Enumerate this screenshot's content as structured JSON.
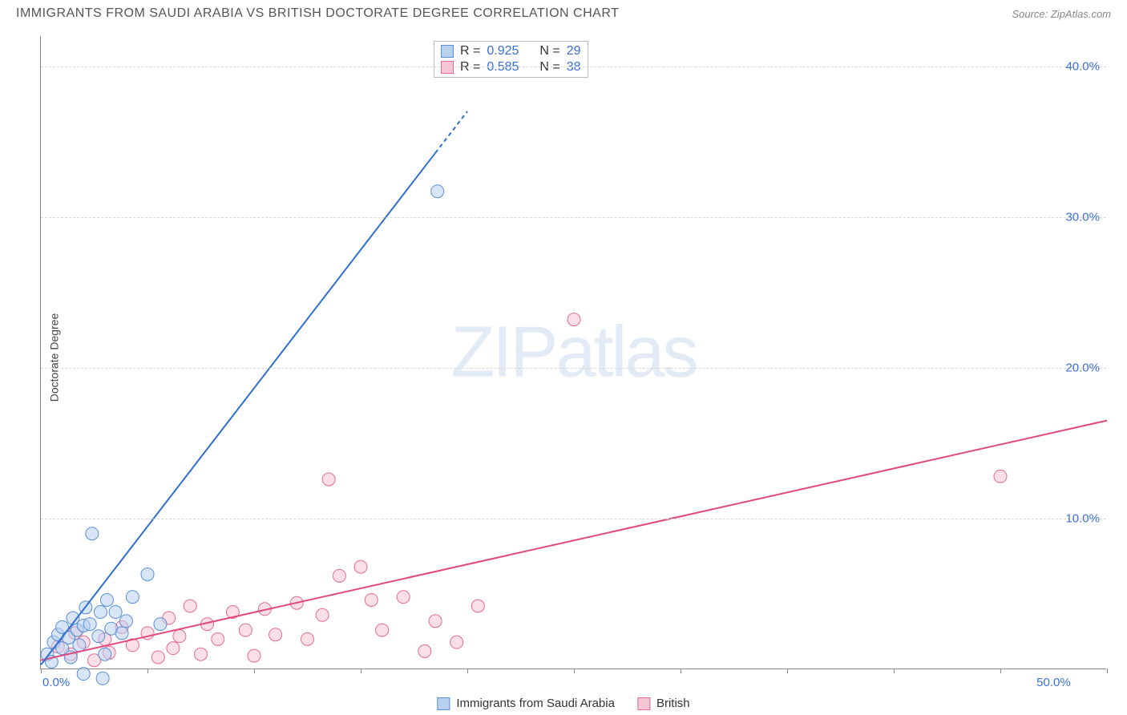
{
  "title": "IMMIGRANTS FROM SAUDI ARABIA VS BRITISH DOCTORATE DEGREE CORRELATION CHART",
  "source": "Source: ZipAtlas.com",
  "ylabel": "Doctorate Degree",
  "watermark": {
    "bold": "ZIP",
    "light": "atlas"
  },
  "chart": {
    "type": "scatter-with-regression",
    "xlim": [
      0,
      50
    ],
    "ylim": [
      0,
      42
    ],
    "xtick_positions": [
      0,
      5,
      10,
      15,
      20,
      25,
      30,
      35,
      40,
      45,
      50
    ],
    "xtick_labels": {
      "0": "0.0%",
      "50": "50.0%"
    },
    "ytick_positions": [
      10,
      20,
      30,
      40
    ],
    "ytick_labels": [
      "10.0%",
      "20.0%",
      "30.0%",
      "40.0%"
    ],
    "grid_color": "#d8d8d8",
    "axis_color": "#888888",
    "label_color": "#3b6fd6",
    "background_color": "#ffffff",
    "marker_radius": 8,
    "marker_opacity": 0.55,
    "line_width": 2
  },
  "series": {
    "saudi": {
      "label": "Immigrants from Saudi Arabia",
      "color_fill": "#b8d0f0",
      "color_stroke": "#5a8fd6",
      "line_color": "#2f6fd0",
      "R": "0.925",
      "N": "29",
      "regression": {
        "x1": 0,
        "y1": 0.3,
        "x2": 20,
        "y2": 37.0,
        "dash_from_x": 18.5
      },
      "points": [
        [
          0.3,
          1.0
        ],
        [
          0.5,
          0.5
        ],
        [
          0.6,
          1.8
        ],
        [
          0.8,
          2.3
        ],
        [
          1.0,
          1.4
        ],
        [
          1.0,
          2.8
        ],
        [
          1.3,
          2.1
        ],
        [
          1.4,
          0.8
        ],
        [
          1.5,
          3.4
        ],
        [
          1.7,
          2.6
        ],
        [
          1.8,
          1.6
        ],
        [
          2.0,
          2.9
        ],
        [
          2.0,
          -0.3
        ],
        [
          2.1,
          4.1
        ],
        [
          2.3,
          3.0
        ],
        [
          2.4,
          9.0
        ],
        [
          2.7,
          2.2
        ],
        [
          2.8,
          3.8
        ],
        [
          2.9,
          -0.6
        ],
        [
          3.0,
          1.0
        ],
        [
          3.1,
          4.6
        ],
        [
          3.3,
          2.7
        ],
        [
          3.5,
          3.8
        ],
        [
          3.8,
          2.4
        ],
        [
          4.0,
          3.2
        ],
        [
          4.3,
          4.8
        ],
        [
          5.0,
          6.3
        ],
        [
          5.6,
          3.0
        ],
        [
          18.6,
          31.7
        ]
      ]
    },
    "british": {
      "label": "British",
      "color_fill": "#f6c5d4",
      "color_stroke": "#e56a94",
      "line_color": "#e2487c",
      "R": "0.585",
      "N": "38",
      "regression": {
        "x1": 0,
        "y1": 0.6,
        "x2": 50,
        "y2": 16.5
      },
      "points": [
        [
          0.8,
          1.5
        ],
        [
          1.4,
          1.0
        ],
        [
          1.6,
          2.4
        ],
        [
          2.0,
          1.8
        ],
        [
          2.5,
          0.6
        ],
        [
          3.0,
          2.0
        ],
        [
          3.2,
          1.1
        ],
        [
          3.8,
          2.8
        ],
        [
          4.3,
          1.6
        ],
        [
          5.0,
          2.4
        ],
        [
          5.5,
          0.8
        ],
        [
          6.0,
          3.4
        ],
        [
          6.2,
          1.4
        ],
        [
          6.5,
          2.2
        ],
        [
          7.0,
          4.2
        ],
        [
          7.5,
          1.0
        ],
        [
          7.8,
          3.0
        ],
        [
          8.3,
          2.0
        ],
        [
          9.0,
          3.8
        ],
        [
          9.6,
          2.6
        ],
        [
          10.0,
          0.9
        ],
        [
          10.5,
          4.0
        ],
        [
          11.0,
          2.3
        ],
        [
          12.0,
          4.4
        ],
        [
          12.5,
          2.0
        ],
        [
          13.2,
          3.6
        ],
        [
          13.5,
          12.6
        ],
        [
          14.0,
          6.2
        ],
        [
          15.5,
          4.6
        ],
        [
          16.0,
          2.6
        ],
        [
          17.0,
          4.8
        ],
        [
          18.0,
          1.2
        ],
        [
          18.5,
          3.2
        ],
        [
          19.5,
          1.8
        ],
        [
          20.5,
          4.2
        ],
        [
          25.0,
          23.2
        ],
        [
          45.0,
          12.8
        ],
        [
          15.0,
          6.8
        ]
      ]
    }
  },
  "stats_box": {
    "rows": [
      {
        "swatch": "saudi",
        "r_label": "R =",
        "r_val": "0.925",
        "n_label": "N =",
        "n_val": "29"
      },
      {
        "swatch": "british",
        "r_label": "R =",
        "r_val": "0.585",
        "n_label": "N =",
        "n_val": "38"
      }
    ]
  }
}
